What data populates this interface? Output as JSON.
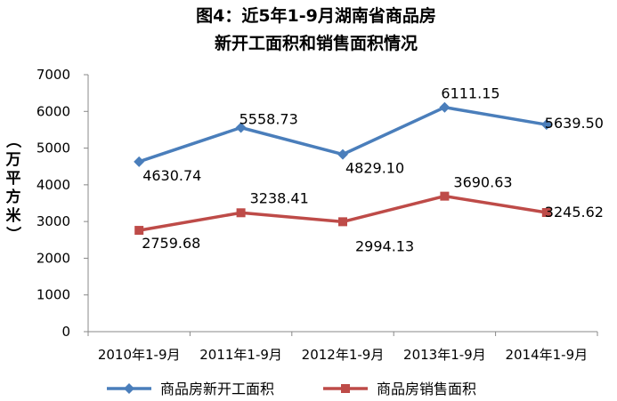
{
  "chart_data": {
    "type": "line",
    "title_line1": "图4：近5年1-9月湖南省商品房",
    "title_line2": "新开工面积和销售面积情况",
    "ylabel": "（万平方米）",
    "ylim": [
      0,
      7000
    ],
    "yticks": [
      0,
      1000,
      2000,
      3000,
      4000,
      5000,
      6000,
      7000
    ],
    "categories": [
      "2010年1-9月",
      "2011年1-9月",
      "2012年1-9月",
      "2013年1-9月",
      "2014年1-9月"
    ],
    "legend_position": "bottom",
    "grid": false,
    "series": [
      {
        "name": "商品房新开工面积",
        "color": "#4a7ebb",
        "marker": "diamond",
        "values": [
          4630.74,
          5558.73,
          4829.1,
          6111.15,
          5639.5
        ],
        "labels": [
          "4630.74",
          "5558.73",
          "4829.10",
          "6111.15",
          "5639.50"
        ]
      },
      {
        "name": "商品房销售面积",
        "color": "#be4b48",
        "marker": "square",
        "values": [
          2759.68,
          3238.41,
          2994.13,
          3690.63,
          3245.62
        ],
        "labels": [
          "2759.68",
          "3238.41",
          "2994.13",
          "3690.63",
          "3245.62"
        ]
      }
    ]
  }
}
